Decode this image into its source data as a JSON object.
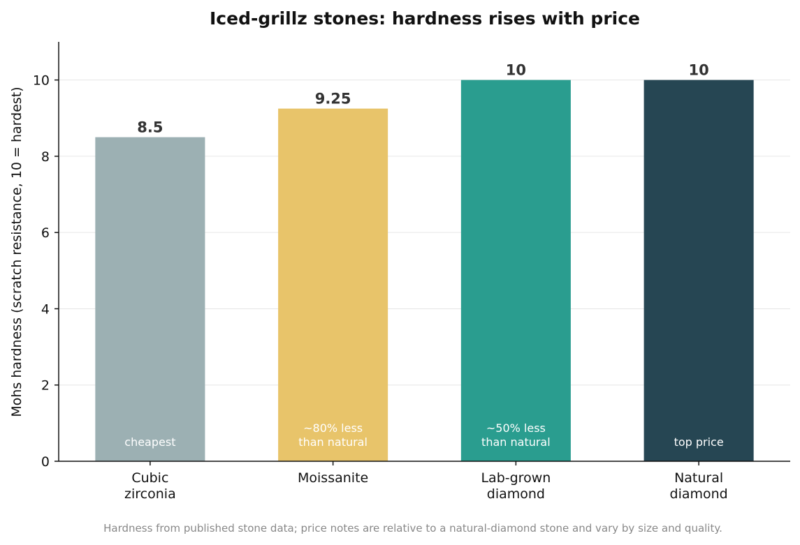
{
  "chart_data": {
    "type": "bar",
    "title": "Iced-grillz stones: hardness rises with price",
    "ylabel": "Mohs hardness (scratch resistance, 10 = hardest)",
    "xlabel": "",
    "categories": [
      [
        "Cubic",
        "zirconia"
      ],
      [
        "Moissanite"
      ],
      [
        "Lab-grown",
        "diamond"
      ],
      [
        "Natural",
        "diamond"
      ]
    ],
    "values": [
      8.5,
      9.25,
      10,
      10
    ],
    "value_labels": [
      "8.5",
      "9.25",
      "10",
      "10"
    ],
    "bar_notes": [
      [
        "cheapest"
      ],
      [
        "~80% less",
        "than natural"
      ],
      [
        "~50% less",
        "than natural"
      ],
      [
        "top price"
      ]
    ],
    "colors": [
      "#9cb0b3",
      "#e8c46a",
      "#2a9d8f",
      "#264653"
    ],
    "ylim": [
      0,
      11
    ],
    "yticks": [
      0,
      2,
      4,
      6,
      8,
      10
    ],
    "grid": "horizontal",
    "footnote": "Hardness from published stone data; price notes are relative to a natural-diamond stone and vary by size and quality."
  }
}
